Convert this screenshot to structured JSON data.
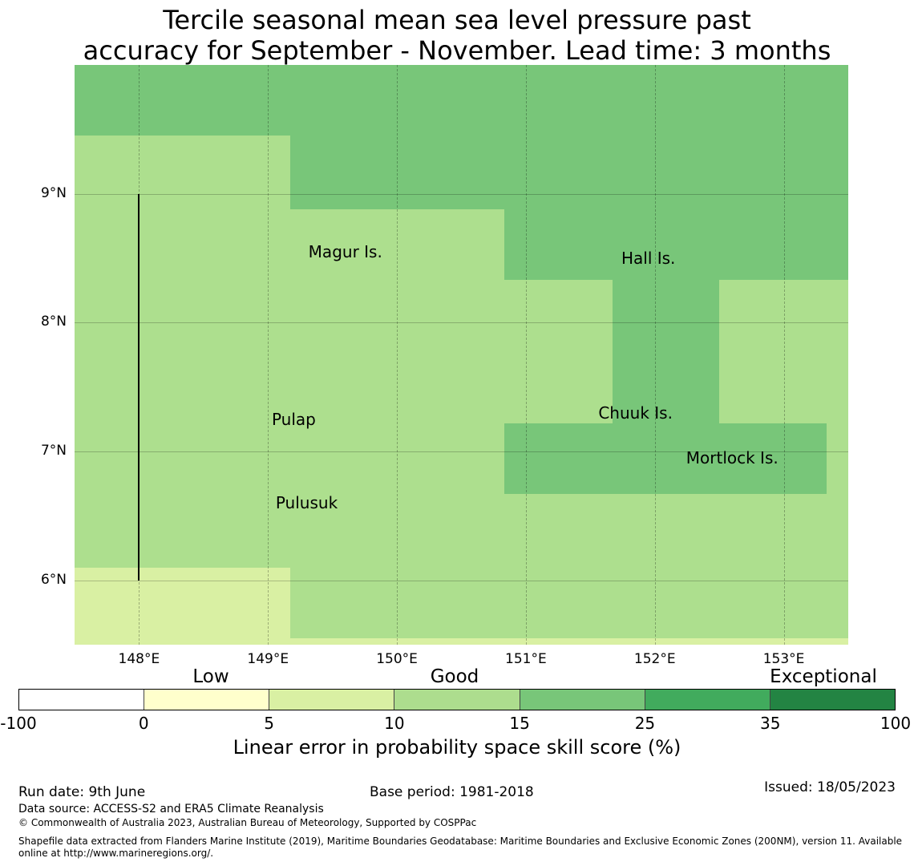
{
  "title_line1": "Tercile seasonal mean sea level pressure past",
  "title_line2": "accuracy for September - November. Lead time: 3 months",
  "map": {
    "lon_range": [
      147.5,
      153.5
    ],
    "lat_range": [
      5.5,
      10.0
    ],
    "lat_ticks": [
      "9°N",
      "8°N",
      "7°N",
      "6°N"
    ],
    "lon_ticks": [
      "148°E",
      "149°E",
      "150°E",
      "151°E",
      "152°E",
      "153°E"
    ],
    "places": [
      {
        "name": "Magur Is.",
        "lon": 149.6,
        "lat": 8.55
      },
      {
        "name": "Hall Is.",
        "lon": 151.95,
        "lat": 8.5
      },
      {
        "name": "Pulap",
        "lon": 149.2,
        "lat": 7.25
      },
      {
        "name": "Chuuk Is.",
        "lon": 151.85,
        "lat": 7.3
      },
      {
        "name": "Mortlock Is.",
        "lon": 152.6,
        "lat": 6.95
      },
      {
        "name": "Pulusuk",
        "lon": 149.3,
        "lat": 6.6
      }
    ],
    "regions": [
      {
        "lon": [
          147.5,
          153.5
        ],
        "lat": [
          9.45,
          10.0
        ],
        "category": "15-25"
      },
      {
        "lon": [
          149.17,
          153.5
        ],
        "lat": [
          8.88,
          9.45
        ],
        "category": "15-25"
      },
      {
        "lon": [
          150.83,
          153.5
        ],
        "lat": [
          8.33,
          8.88
        ],
        "category": "15-25"
      },
      {
        "lon": [
          151.67,
          152.5
        ],
        "lat": [
          7.22,
          8.33
        ],
        "category": "15-25"
      },
      {
        "lon": [
          150.83,
          153.33
        ],
        "lat": [
          6.67,
          7.22
        ],
        "category": "15-25"
      },
      {
        "lon": [
          147.5,
          149.17
        ],
        "lat": [
          5.5,
          6.1
        ],
        "category": "5-10"
      },
      {
        "lon": [
          149.17,
          153.5
        ],
        "lat": [
          5.5,
          5.55
        ],
        "category": "5-10"
      }
    ]
  },
  "category_labels": {
    "low": "Low",
    "good": "Good",
    "exceptional": "Exceptional"
  },
  "colorbar": {
    "colors": [
      "#ffffff",
      "#ffffcc",
      "#d9f0a3",
      "#addd8e",
      "#78c679",
      "#41ab5d",
      "#238443"
    ],
    "ticks": [
      "-100",
      "0",
      "5",
      "10",
      "15",
      "25",
      "35",
      "100"
    ],
    "title": "Linear error in probability space skill score (%)"
  },
  "footer": {
    "run_date": "Run date: 9th June",
    "base_period": "Base period: 1981-2018",
    "issued": "Issued: 18/05/2023",
    "data_source": "Data source: ACCESS-S2 and ERA5 Climate Reanalysis",
    "copyright": "© Commonwealth of Australia 2023, Australian Bureau of Meteorology, Supported by COSPPac",
    "shapefile_line1": "Shapefile data extracted from Flanders Marine Institute (2019), Maritime Boundaries Geodatabase: Maritime Boundaries and Exclusive Economic Zones (200NM), version 11. Available",
    "shapefile_line2": "online at http://www.marineregions.org/."
  }
}
